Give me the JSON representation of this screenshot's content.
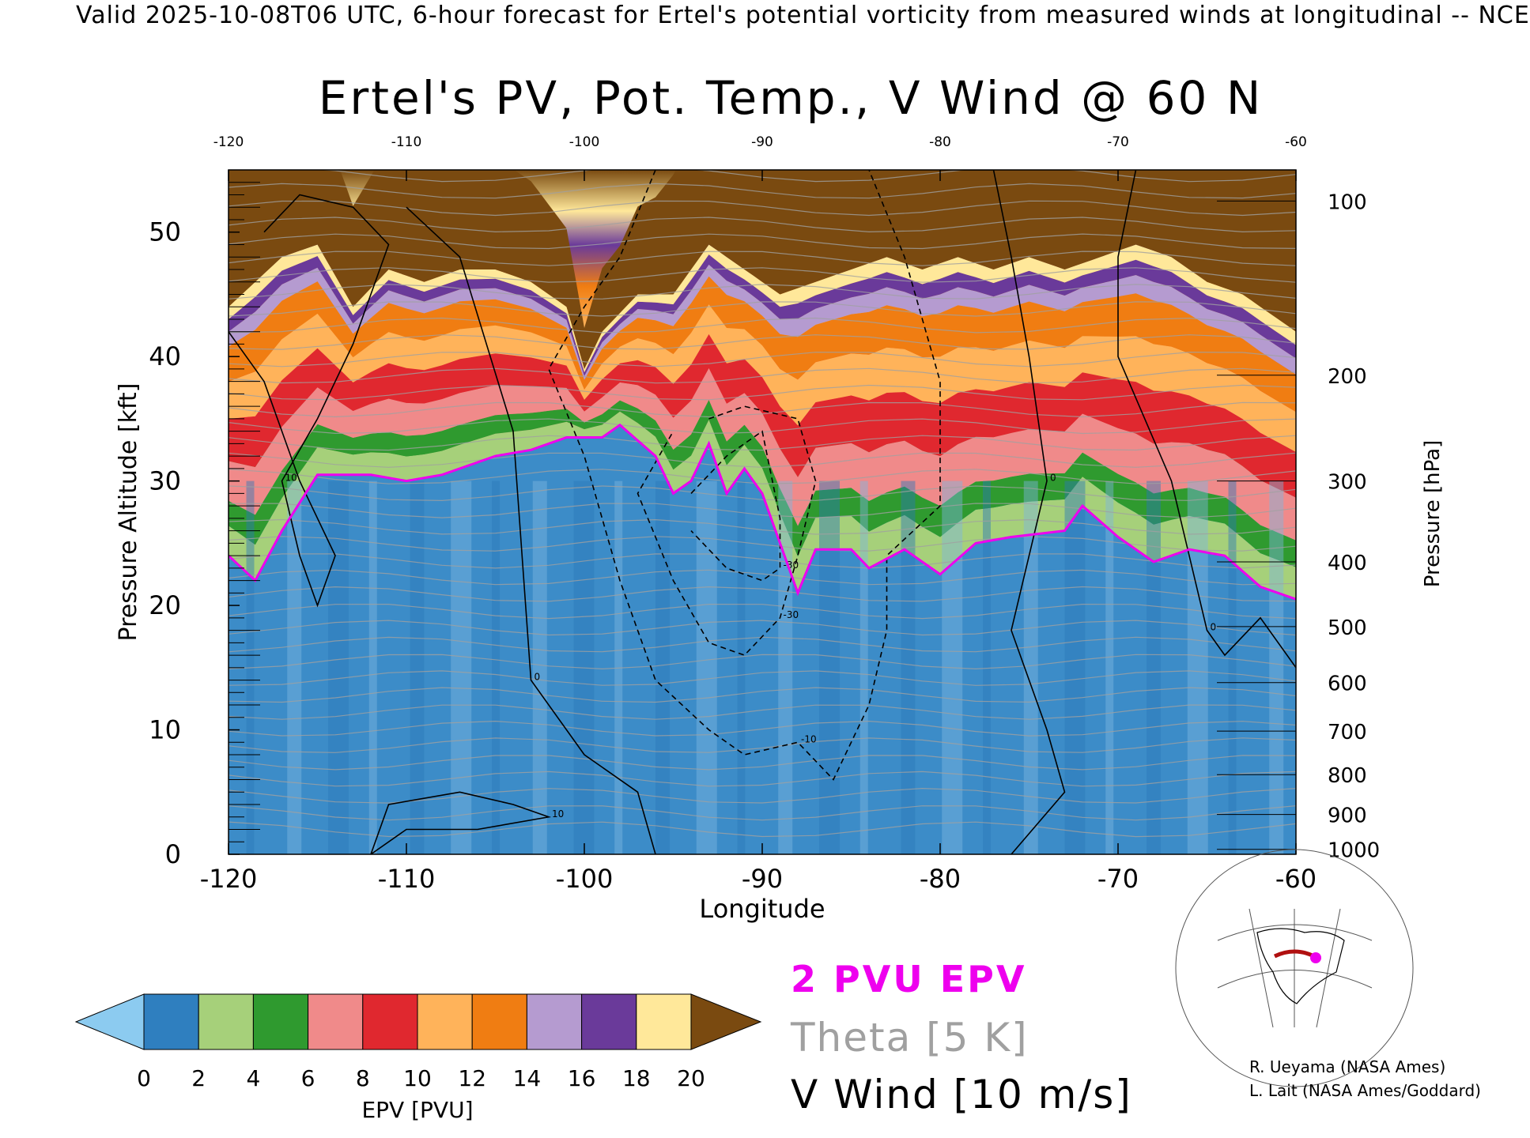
{
  "header": {
    "line": "Valid 2025-10-08T06 UTC, 6-hour forecast for Ertel's potential vorticity from measured winds at longitudinal -- NCE"
  },
  "chart_data": {
    "type": "heatmap",
    "title": "Ertel's PV, Pot. Temp., V Wind @ 60 N",
    "xlabel": "Longitude",
    "ylabel": "Pressure Altitude [kft]",
    "ylabel_right": "Pressure [hPa]",
    "xlim": [
      -120,
      -60
    ],
    "ylim": [
      0,
      55
    ],
    "x_ticks": [
      "-120",
      "-110",
      "-100",
      "-90",
      "-80",
      "-70",
      "-60"
    ],
    "x_ticks_top": [
      "-120",
      "-110",
      "-100",
      "-90",
      "-80",
      "-70",
      "-60"
    ],
    "y_ticks": [
      "0",
      "10",
      "20",
      "30",
      "40",
      "50"
    ],
    "pressure_ticks": [
      {
        "label": "100",
        "kft": 52.5
      },
      {
        "label": "200",
        "kft": 38.5
      },
      {
        "label": "300",
        "kft": 30.0
      },
      {
        "label": "400",
        "kft": 23.5
      },
      {
        "label": "500",
        "kft": 18.3
      },
      {
        "label": "600",
        "kft": 13.8
      },
      {
        "label": "700",
        "kft": 9.9
      },
      {
        "label": "800",
        "kft": 6.4
      },
      {
        "label": "900",
        "kft": 3.2
      },
      {
        "label": "1000",
        "kft": 0.4
      }
    ],
    "pv_2pvu_boundary_kft": [
      [
        -120,
        24
      ],
      [
        -118.5,
        22
      ],
      [
        -117,
        26
      ],
      [
        -115,
        30.5
      ],
      [
        -112,
        30.5
      ],
      [
        -110,
        30
      ],
      [
        -108,
        30.5
      ],
      [
        -105,
        32
      ],
      [
        -103,
        32.5
      ],
      [
        -101,
        33.5
      ],
      [
        -99,
        33.5
      ],
      [
        -98,
        34.5
      ],
      [
        -96,
        32
      ],
      [
        -95,
        29
      ],
      [
        -94,
        30
      ],
      [
        -93,
        33
      ],
      [
        -92,
        29
      ],
      [
        -91,
        31
      ],
      [
        -90,
        29
      ],
      [
        -89,
        25
      ],
      [
        -88,
        21
      ],
      [
        -87,
        24.5
      ],
      [
        -85,
        24.5
      ],
      [
        -84,
        23
      ],
      [
        -82,
        24.5
      ],
      [
        -80,
        22.5
      ],
      [
        -78,
        25
      ],
      [
        -76,
        25.5
      ],
      [
        -73,
        26
      ],
      [
        -72,
        28
      ],
      [
        -70,
        25.5
      ],
      [
        -68,
        23.5
      ],
      [
        -66,
        24.5
      ],
      [
        -64,
        24
      ],
      [
        -62,
        21.5
      ],
      [
        -60,
        20.5
      ]
    ],
    "tropopause_top_kft": [
      [
        -120,
        44
      ],
      [
        -117,
        48
      ],
      [
        -115,
        49
      ],
      [
        -113,
        44
      ],
      [
        -111,
        47
      ],
      [
        -109,
        46
      ],
      [
        -107,
        47
      ],
      [
        -105,
        47
      ],
      [
        -103,
        46
      ],
      [
        -101,
        44
      ],
      [
        -100,
        39
      ],
      [
        -99,
        42
      ],
      [
        -97,
        45
      ],
      [
        -95,
        45
      ],
      [
        -93,
        49
      ],
      [
        -91,
        47
      ],
      [
        -89,
        45
      ],
      [
        -87,
        46
      ],
      [
        -85,
        47
      ],
      [
        -83,
        48
      ],
      [
        -81,
        47
      ],
      [
        -79,
        48
      ],
      [
        -77,
        47
      ],
      [
        -75,
        48
      ],
      [
        -73,
        47
      ],
      [
        -71,
        48
      ],
      [
        -69,
        49
      ],
      [
        -67,
        48
      ],
      [
        -65,
        46
      ],
      [
        -63,
        45
      ],
      [
        -61,
        43
      ],
      [
        -60,
        42
      ]
    ],
    "colorbar": {
      "label": "EPV [PVU]",
      "ticks": [
        "0",
        "2",
        "4",
        "6",
        "8",
        "10",
        "12",
        "14",
        "16",
        "18",
        "20"
      ],
      "colors": [
        "#8ccbf0",
        "#2f7fbf",
        "#a6d07a",
        "#2f9a2f",
        "#f08a8a",
        "#e0282f",
        "#ffb35a",
        "#f07d12",
        "#b59bd0",
        "#6a3a9a",
        "#ffe89a",
        "#7a4a10"
      ]
    },
    "legend": {
      "pvu": "2 PVU EPV",
      "theta": "Theta [5 K]",
      "vwind": "V Wind [10 m/s]"
    },
    "vwind_contours": [
      {
        "label": "0",
        "points": [
          [
            -110,
            52
          ],
          [
            -107,
            48
          ],
          [
            -104,
            34
          ],
          [
            -103,
            14
          ],
          [
            -100,
            8
          ],
          [
            -97,
            5
          ],
          [
            -96,
            0
          ]
        ]
      },
      {
        "label": "0",
        "points": [
          [
            -80,
            55
          ],
          [
            -77,
            55
          ],
          [
            -76,
            48
          ],
          [
            -75,
            40
          ],
          [
            -74,
            30
          ],
          [
            -76,
            18
          ],
          [
            -74,
            10
          ],
          [
            -73,
            5
          ],
          [
            -76,
            0
          ]
        ]
      },
      {
        "label": "0",
        "points": [
          [
            -69,
            55
          ],
          [
            -70,
            48
          ],
          [
            -70,
            40
          ],
          [
            -67,
            30
          ],
          [
            -65,
            18
          ],
          [
            -64,
            16
          ],
          [
            -62,
            19
          ],
          [
            -60,
            15
          ]
        ]
      },
      {
        "label": "10",
        "points": [
          [
            -118,
            50
          ],
          [
            -116,
            53
          ],
          [
            -113,
            52
          ],
          [
            -111,
            49
          ],
          [
            -113,
            41
          ],
          [
            -115,
            35
          ],
          [
            -117,
            30
          ],
          [
            -116,
            24
          ],
          [
            -115,
            20
          ],
          [
            -114,
            24
          ],
          [
            -116,
            30
          ],
          [
            -118,
            38
          ],
          [
            -120,
            42
          ]
        ]
      },
      {
        "label": "10",
        "points": [
          [
            -112,
            0
          ],
          [
            -111,
            4
          ],
          [
            -107,
            5
          ],
          [
            -104,
            4
          ],
          [
            -102,
            3
          ],
          [
            -106,
            2
          ],
          [
            -110,
            2
          ],
          [
            -112,
            0
          ]
        ]
      },
      {
        "label": "-10",
        "points": [
          [
            -96,
            55
          ],
          [
            -98,
            48
          ],
          [
            -100,
            44
          ],
          [
            -102,
            39
          ],
          [
            -100,
            32
          ],
          [
            -98,
            22
          ],
          [
            -96,
            14
          ],
          [
            -93,
            10
          ],
          [
            -91,
            8
          ],
          [
            -88,
            9
          ],
          [
            -86,
            6
          ],
          [
            -84,
            12
          ],
          [
            -83,
            18
          ],
          [
            -83,
            24
          ],
          [
            -80,
            28
          ],
          [
            -80,
            38
          ],
          [
            -82,
            48
          ],
          [
            -84,
            55
          ]
        ]
      },
      {
        "label": "-30",
        "points": [
          [
            -93,
            35
          ],
          [
            -91,
            36
          ],
          [
            -88,
            35
          ],
          [
            -87,
            30
          ],
          [
            -88,
            24
          ],
          [
            -89,
            19
          ],
          [
            -91,
            16
          ],
          [
            -93,
            17
          ],
          [
            -95,
            22
          ],
          [
            -97,
            29
          ],
          [
            -95,
            34
          ]
        ]
      },
      {
        "label": "-30",
        "points": [
          [
            -94,
            29
          ],
          [
            -92,
            32
          ],
          [
            -90,
            34
          ],
          [
            -89,
            27
          ],
          [
            -89,
            23
          ],
          [
            -90,
            22
          ],
          [
            -92,
            23
          ],
          [
            -94,
            26
          ]
        ]
      }
    ]
  },
  "inset_map": {
    "icon": "globe-map-icon"
  },
  "credits": [
    "R. Ueyama (NASA Ames)",
    "L. Lait (NASA Ames/Goddard)"
  ]
}
